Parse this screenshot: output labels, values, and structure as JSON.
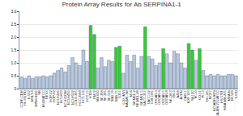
{
  "chart_data": {
    "type": "bar",
    "title": "Protein Array Results for Ab SERPINA1-1",
    "categories": [
      "CCRF-CEM",
      "HL-60(TB)",
      "K-562",
      "MOLT-4",
      "RPMI-8226",
      "SR",
      "A549/ATCC",
      "EKVX",
      "HOP-62",
      "HOP-92",
      "NCI-H226",
      "NCI-H23",
      "NCI-H322M",
      "NCI-H460",
      "NCI-H522",
      "COLO 205",
      "HCC-2998",
      "HCT-116",
      "HCT-15",
      "HT29",
      "KM12",
      "SW-620",
      "SF-268",
      "SF-295",
      "SF-539",
      "SNB-19",
      "SNB-75",
      "U251",
      "LOX IMVI",
      "MALME-3M",
      "M14",
      "SK-MEL-2",
      "SK-MEL-28",
      "SK-MEL-5",
      "UACC-257",
      "UACC-62",
      "IGR-OV1",
      "OVCAR-3",
      "OVCAR-4",
      "OVCAR-5",
      "OVCAR-8",
      "SK-OV-3",
      "786-0",
      "A498",
      "ACHN",
      "CAKI-1",
      "RXF 393",
      "SN12C",
      "TK-10",
      "UO-31",
      "PC-3",
      "DU-145",
      "MCF7",
      "NCI/ADR-RES",
      "MDA-MB-231/ATCC",
      "HS 578T",
      "MDA-MB-435",
      "MDA-N",
      "BT-549",
      "T-47D"
    ],
    "values": [
      0.45,
      0.4,
      0.5,
      0.4,
      0.45,
      0.45,
      0.5,
      0.45,
      0.5,
      0.6,
      0.7,
      0.8,
      0.65,
      0.9,
      1.2,
      1.0,
      0.9,
      1.5,
      1.05,
      2.45,
      2.1,
      0.8,
      1.2,
      0.85,
      1.1,
      1.05,
      1.6,
      1.65,
      0.6,
      1.3,
      1.05,
      1.3,
      0.8,
      1.25,
      2.4,
      1.25,
      1.15,
      0.9,
      1.0,
      1.55,
      1.35,
      1.0,
      1.45,
      1.35,
      1.0,
      0.8,
      1.75,
      1.5,
      1.1,
      1.55,
      0.7,
      0.5,
      0.55,
      0.5,
      0.55,
      0.5,
      0.5,
      0.55,
      0.55,
      0.5
    ],
    "colors": [
      "#b8c8e0",
      "#b8c8e0",
      "#b8c8e0",
      "#b8c8e0",
      "#b8c8e0",
      "#b8c8e0",
      "#b8c8e0",
      "#b8c8e0",
      "#b8c8e0",
      "#b8c8e0",
      "#b8c8e0",
      "#b8c8e0",
      "#b8c8e0",
      "#b8c8e0",
      "#b8c8e0",
      "#b8c8e0",
      "#b8c8e0",
      "#b8c8e0",
      "#b8c8e0",
      "#33cc33",
      "#33cc33",
      "#b8c8e0",
      "#b8c8e0",
      "#b8c8e0",
      "#b8c8e0",
      "#b8c8e0",
      "#33cc33",
      "#33cc33",
      "#b8c8e0",
      "#b8c8e0",
      "#b8c8e0",
      "#b8c8e0",
      "#b8c8e0",
      "#b8c8e0",
      "#33cc33",
      "#b8c8e0",
      "#b8c8e0",
      "#b8c8e0",
      "#b8c8e0",
      "#33cc33",
      "#b8c8e0",
      "#b8c8e0",
      "#b8c8e0",
      "#b8c8e0",
      "#b8c8e0",
      "#b8c8e0",
      "#33cc33",
      "#33cc33",
      "#b8c8e0",
      "#33cc33",
      "#b8c8e0",
      "#b8c8e0",
      "#b8c8e0",
      "#b8c8e0",
      "#b8c8e0",
      "#b8c8e0",
      "#b8c8e0",
      "#b8c8e0",
      "#b8c8e0",
      "#b8c8e0"
    ],
    "ylim": [
      0,
      3
    ],
    "yticks": [
      0,
      0.5,
      {
        "value": 1,
        "label": "1.0"
      },
      1.5,
      {
        "value": 2,
        "label": "2.0"
      },
      2.5,
      {
        "value": 3,
        "label": "3.0"
      }
    ],
    "grid": true
  }
}
